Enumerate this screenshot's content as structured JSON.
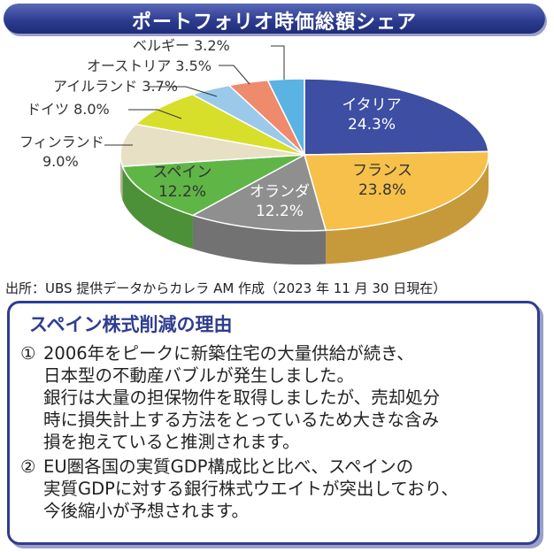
{
  "header": {
    "title": "ポートフォリオ時価総額シェア"
  },
  "chart_data": {
    "type": "pie",
    "title": "ポートフォリオ時価総額シェア",
    "slices": [
      {
        "label": "イタリア",
        "value": 24.3,
        "value_text": "24.3%",
        "color": "#3d4ea3"
      },
      {
        "label": "フランス",
        "value": 23.8,
        "value_text": "23.8%",
        "color": "#f7c04a"
      },
      {
        "label": "オランダ",
        "value": 12.2,
        "value_text": "12.2%",
        "color": "#8f8f8f"
      },
      {
        "label": "スペイン",
        "value": 12.2,
        "value_text": "12.2%",
        "color": "#5fb546"
      },
      {
        "label": "フィンランド",
        "value": 9.0,
        "value_text": "9.0%",
        "color": "#e8e0c5"
      },
      {
        "label": "ドイツ",
        "value": 8.0,
        "value_text": "8.0%",
        "color": "#d8df2a"
      },
      {
        "label": "アイルランド",
        "value": 3.7,
        "value_text": "3.7%",
        "color": "#9bc9ea"
      },
      {
        "label": "オーストリア",
        "value": 3.5,
        "value_text": "3.5%",
        "color": "#ef8a6d"
      },
      {
        "label": "ベルギー",
        "value": 3.2,
        "value_text": "3.2%",
        "color": "#5ab3e3"
      }
    ]
  },
  "source": "出所：UBS 提供データからカレラ AM 作成（2023 年 11 月 30 日現在）",
  "reasons": {
    "title": "スペイン株式削減の理由",
    "items": [
      {
        "number": "①",
        "lines": [
          "2006年をピークに新築住宅の大量供給が続き、",
          "日本型の不動産バブルが発生しました。",
          "銀行は大量の担保物件を取得しましたが、売却処分",
          "時に損失計上する方法をとっているため大きな含み",
          "損を抱えていると推測されます。"
        ]
      },
      {
        "number": "②",
        "lines": [
          "EU圏各国の実質GDP構成比と比べ、スペインの",
          "実質GDPに対する銀行株式ウエイトが突出しており、",
          "今後縮小が予想されます。"
        ]
      }
    ]
  }
}
